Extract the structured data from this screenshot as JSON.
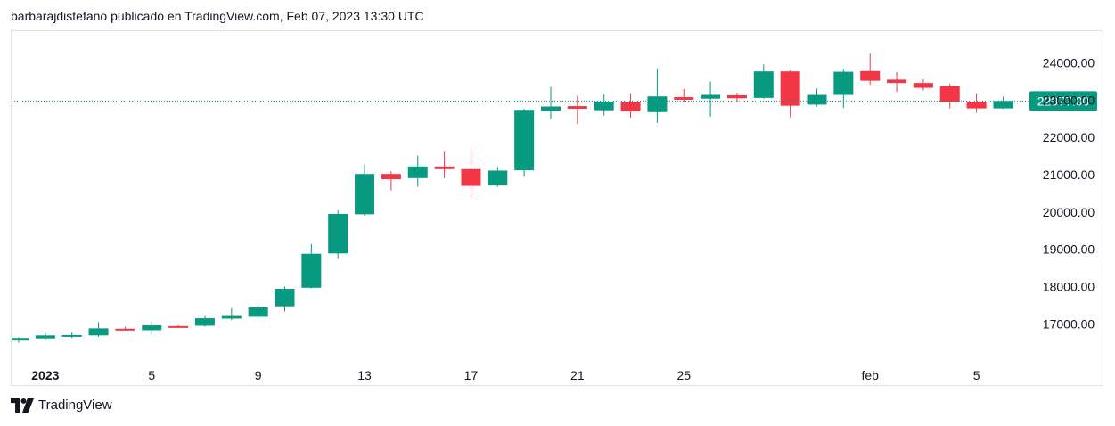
{
  "header": {
    "text": "barbarajdistefano publicado en TradingView.com, Feb 07, 2023 13:30 UTC"
  },
  "footer": {
    "brand": "TradingView"
  },
  "colors": {
    "up": "#089981",
    "down": "#f23645",
    "last_price_bg": "#089981",
    "last_price_line": "#089981"
  },
  "chart_data": {
    "type": "candlestick",
    "title": "",
    "xlabel": "",
    "ylabel": "",
    "ylim": [
      16100,
      24850
    ],
    "y_ticks": [
      "17000.00",
      "18000.00",
      "19000.00",
      "20000.00",
      "21000.00",
      "22000.00",
      "23000.00",
      "24000.00"
    ],
    "x_ticks": [
      {
        "index": 1,
        "label": "2023",
        "bold": true
      },
      {
        "index": 5,
        "label": "5"
      },
      {
        "index": 9,
        "label": "9"
      },
      {
        "index": 13,
        "label": "13"
      },
      {
        "index": 17,
        "label": "17"
      },
      {
        "index": 21,
        "label": "21"
      },
      {
        "index": 25,
        "label": "25"
      },
      {
        "index": 32,
        "label": "feb"
      },
      {
        "index": 36,
        "label": "5"
      }
    ],
    "last_price": {
      "value": 22977,
      "label": "22977.00"
    },
    "candles": [
      {
        "o": 16550,
        "h": 16640,
        "l": 16490,
        "c": 16620
      },
      {
        "o": 16610,
        "h": 16760,
        "l": 16580,
        "c": 16690
      },
      {
        "o": 16660,
        "h": 16770,
        "l": 16620,
        "c": 16700
      },
      {
        "o": 16690,
        "h": 17050,
        "l": 16650,
        "c": 16880
      },
      {
        "o": 16870,
        "h": 16920,
        "l": 16820,
        "c": 16840
      },
      {
        "o": 16830,
        "h": 17080,
        "l": 16700,
        "c": 16960
      },
      {
        "o": 16940,
        "h": 16970,
        "l": 16900,
        "c": 16930
      },
      {
        "o": 16950,
        "h": 17210,
        "l": 16920,
        "c": 17150
      },
      {
        "o": 17140,
        "h": 17420,
        "l": 17100,
        "c": 17210
      },
      {
        "o": 17190,
        "h": 17480,
        "l": 17160,
        "c": 17440
      },
      {
        "o": 17470,
        "h": 18000,
        "l": 17330,
        "c": 17940
      },
      {
        "o": 17970,
        "h": 19140,
        "l": 17950,
        "c": 18880
      },
      {
        "o": 18890,
        "h": 20050,
        "l": 18740,
        "c": 19950
      },
      {
        "o": 19940,
        "h": 21280,
        "l": 19900,
        "c": 21020
      },
      {
        "o": 21020,
        "h": 21090,
        "l": 20580,
        "c": 20880
      },
      {
        "o": 20910,
        "h": 21510,
        "l": 20680,
        "c": 21220
      },
      {
        "o": 21220,
        "h": 21640,
        "l": 20910,
        "c": 21150
      },
      {
        "o": 21150,
        "h": 21680,
        "l": 20400,
        "c": 20700
      },
      {
        "o": 20710,
        "h": 21210,
        "l": 20680,
        "c": 21110
      },
      {
        "o": 21120,
        "h": 22770,
        "l": 20950,
        "c": 22740
      },
      {
        "o": 22710,
        "h": 23360,
        "l": 22490,
        "c": 22830
      },
      {
        "o": 22840,
        "h": 23120,
        "l": 22360,
        "c": 22770
      },
      {
        "o": 22730,
        "h": 23160,
        "l": 22590,
        "c": 22960
      },
      {
        "o": 22950,
        "h": 23180,
        "l": 22530,
        "c": 22700
      },
      {
        "o": 22680,
        "h": 23850,
        "l": 22390,
        "c": 23100
      },
      {
        "o": 23080,
        "h": 23300,
        "l": 22950,
        "c": 23010
      },
      {
        "o": 23040,
        "h": 23500,
        "l": 22560,
        "c": 23140
      },
      {
        "o": 23130,
        "h": 23200,
        "l": 22940,
        "c": 23050
      },
      {
        "o": 23060,
        "h": 23960,
        "l": 23040,
        "c": 23770
      },
      {
        "o": 23770,
        "h": 23800,
        "l": 22540,
        "c": 22850
      },
      {
        "o": 22880,
        "h": 23310,
        "l": 22830,
        "c": 23140
      },
      {
        "o": 23140,
        "h": 23840,
        "l": 22790,
        "c": 23760
      },
      {
        "o": 23780,
        "h": 24250,
        "l": 23410,
        "c": 23520
      },
      {
        "o": 23550,
        "h": 23750,
        "l": 23220,
        "c": 23460
      },
      {
        "o": 23460,
        "h": 23560,
        "l": 23260,
        "c": 23330
      },
      {
        "o": 23380,
        "h": 23440,
        "l": 22780,
        "c": 22950
      },
      {
        "o": 22960,
        "h": 23180,
        "l": 22660,
        "c": 22780
      },
      {
        "o": 22780,
        "h": 23090,
        "l": 22760,
        "c": 22977
      }
    ]
  }
}
